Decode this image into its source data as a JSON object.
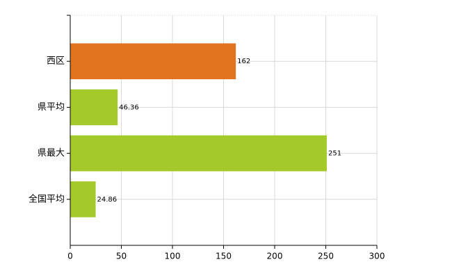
{
  "chart_data": {
    "type": "barh",
    "categories": [
      "西区",
      "県平均",
      "県最大",
      "全国平均"
    ],
    "values": [
      162,
      46.36,
      251,
      24.86
    ],
    "colors": [
      "#e2731f",
      "#a3c92a",
      "#a3c92a",
      "#a3c92a"
    ],
    "xlim": [
      0,
      300
    ],
    "xticks": [
      0,
      50,
      100,
      150,
      200,
      250,
      300
    ],
    "grid": true
  }
}
